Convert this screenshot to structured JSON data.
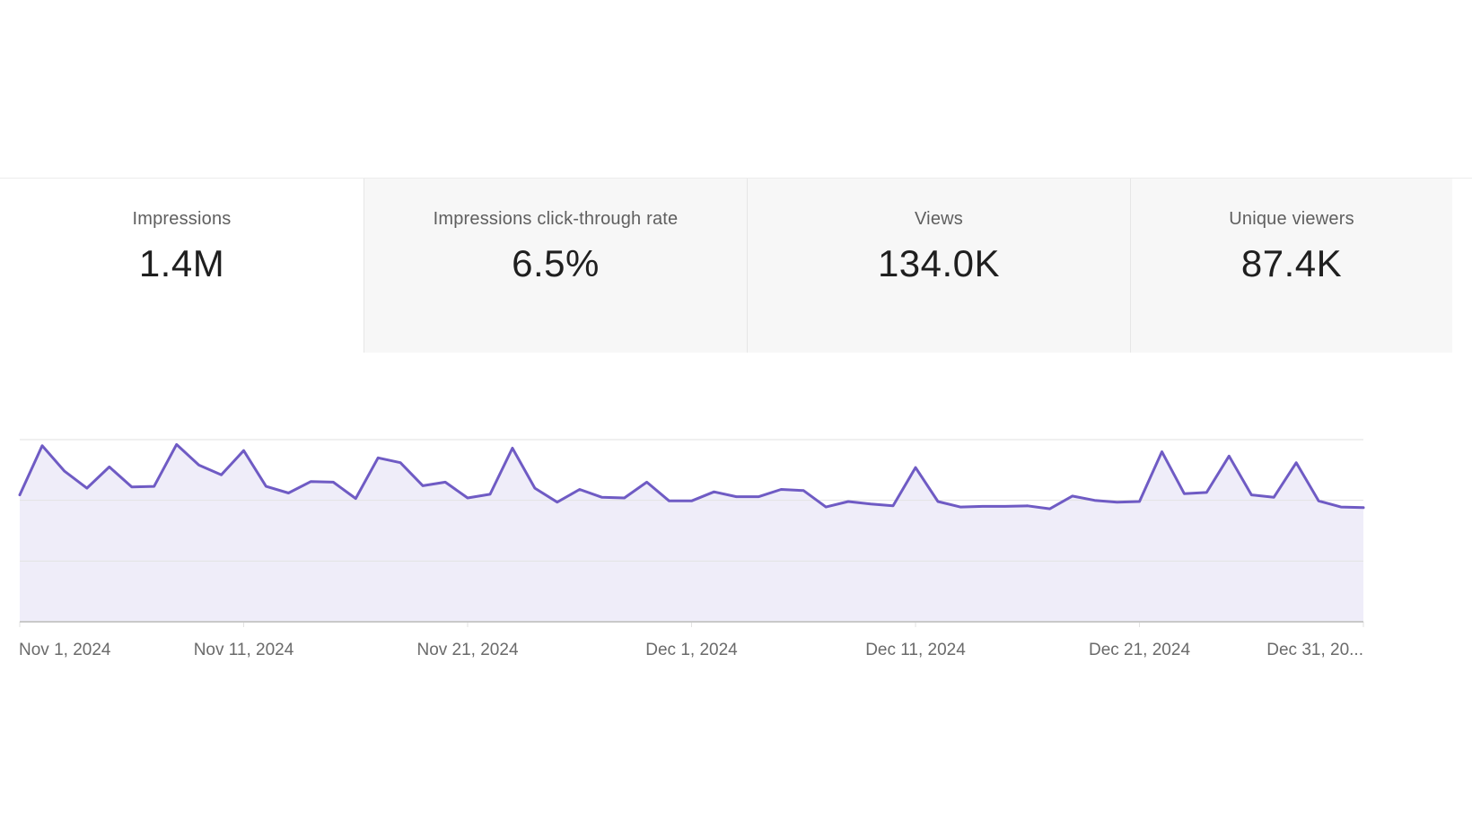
{
  "metrics": [
    {
      "label": "Impressions",
      "value": "1.4M",
      "active": true
    },
    {
      "label": "Impressions click-through rate",
      "value": "6.5%",
      "active": false
    },
    {
      "label": "Views",
      "value": "134.0K",
      "active": false
    },
    {
      "label": "Unique viewers",
      "value": "87.4K",
      "active": false
    }
  ],
  "colors": {
    "line": "#6f5bc4",
    "fill": "#efedf9",
    "grid": "#e2e2e2",
    "baseline": "#c9c9c9"
  },
  "chart_data": {
    "type": "area",
    "series": [
      {
        "values": [
          20900,
          29000,
          24800,
          22000,
          25500,
          22200,
          22300,
          29200,
          25800,
          24200,
          28200,
          22300,
          21200,
          23100,
          23000,
          20300,
          27000,
          26200,
          22400,
          23000,
          20400,
          21000,
          28600,
          22000,
          19700,
          21800,
          20500,
          20400,
          23000,
          19900,
          19900,
          21400,
          20600,
          20600,
          21800,
          21600,
          18900,
          19800,
          19400,
          19100,
          25400,
          19800,
          18900,
          19000,
          19000,
          19100,
          18600,
          20700,
          20000,
          19700,
          19800,
          28000,
          21100,
          21300,
          27300,
          20900,
          20500,
          26200,
          19900,
          18900,
          18800
        ]
      }
    ],
    "x_start": "Nov 1, 2024",
    "x_end": "Dec 31, 2024",
    "ylim": [
      0,
      30000
    ],
    "grid": true,
    "xticks": [
      {
        "index": 0,
        "label": "Nov 1, 2024"
      },
      {
        "index": 10,
        "label": "Nov 11, 2024"
      },
      {
        "index": 20,
        "label": "Nov 21, 2024"
      },
      {
        "index": 30,
        "label": "Dec 1, 2024"
      },
      {
        "index": 40,
        "label": "Dec 11, 2024"
      },
      {
        "index": 50,
        "label": "Dec 21, 2024"
      },
      {
        "index": 60,
        "label": "Dec 31, 20..."
      }
    ]
  }
}
